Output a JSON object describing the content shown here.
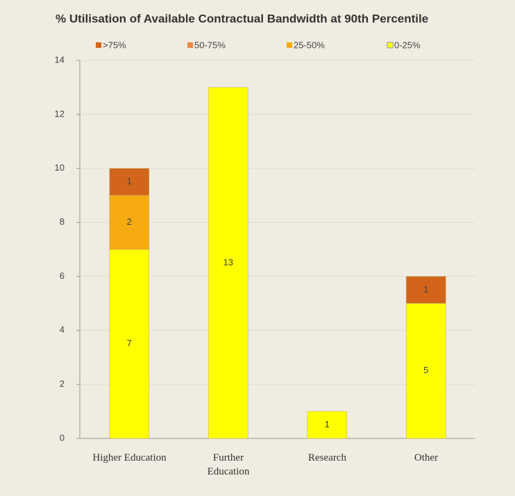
{
  "chart_data": {
    "type": "stacked_bar",
    "title": "% Utilisation of Available Contractual Bandwidth at 90th Percentile",
    "categories": [
      "Higher Education",
      "Further\nEducation",
      "Research",
      "Other"
    ],
    "series": [
      {
        "name": ">75%",
        "color": "#d2651a",
        "values": [
          1,
          0,
          0,
          1
        ]
      },
      {
        "name": "50-75%",
        "color": "#e8894a",
        "values": [
          0,
          0,
          0,
          0
        ]
      },
      {
        "name": "25-50%",
        "color": "#f5aa10",
        "values": [
          2,
          0,
          0,
          0
        ]
      },
      {
        "name": "0-25%",
        "color": "#ffff00",
        "values": [
          7,
          13,
          1,
          5
        ]
      }
    ],
    "ylim": [
      0,
      14
    ],
    "yticks": [
      0,
      2,
      4,
      6,
      8,
      10,
      12,
      14
    ],
    "grid": true
  }
}
